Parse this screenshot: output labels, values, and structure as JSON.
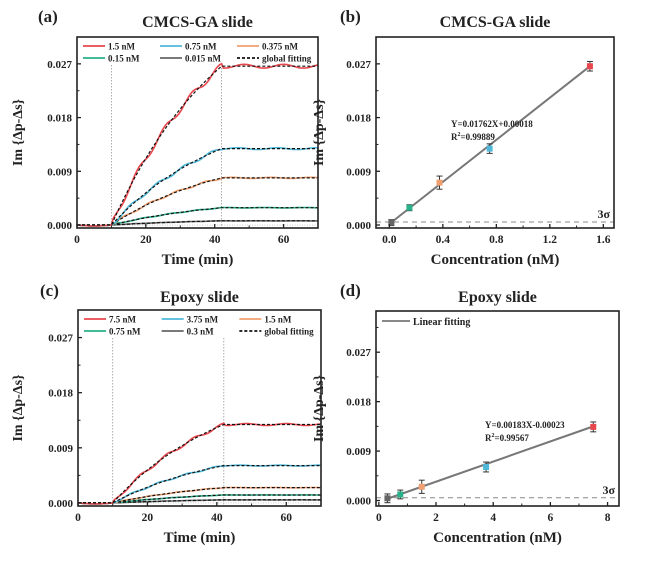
{
  "chart_data": [
    {
      "panel": "(a)",
      "type": "line",
      "title": "CMCS-GA slide",
      "xlabel": "Time (min)",
      "ylabel": "Im {Δp-Δs}",
      "xlim": [
        0,
        70
      ],
      "ylim": [
        -0.0005,
        0.0315
      ],
      "xticks": [
        0,
        20,
        40,
        60
      ],
      "xtick_labels": [
        "0",
        "20",
        "40",
        "60"
      ],
      "yticks": [
        0,
        0.009,
        0.018,
        0.027
      ],
      "ytick_labels": [
        "0.000",
        "0.009",
        "0.018",
        "0.027"
      ],
      "vlines": [
        10,
        42
      ],
      "association_start": 10,
      "dissociation_start": 42,
      "legend_position": "top",
      "series": [
        {
          "name": "1.5 nM",
          "color": "#e8474d",
          "plateau": 0.0266
        },
        {
          "name": "0.75 nM",
          "color": "#4fb8d8",
          "plateau": 0.0128
        },
        {
          "name": "0.375 nM",
          "color": "#f0a070",
          "plateau": 0.0079
        },
        {
          "name": "0.15 nM",
          "color": "#2ab08a",
          "plateau": 0.0029
        },
        {
          "name": "0.015 nM",
          "color": "#666666",
          "plateau": 0.0007
        }
      ],
      "fit_label": "global fitting"
    },
    {
      "panel": "(b)",
      "type": "scatter",
      "title": "CMCS-GA slide",
      "xlabel": "Concentration (nM)",
      "ylabel": "Im {Δp-Δs}",
      "xlim": [
        -0.1,
        1.68
      ],
      "ylim": [
        -0.0005,
        0.0315
      ],
      "xticks": [
        0,
        0.4,
        0.8,
        1.2,
        1.6
      ],
      "xtick_labels": [
        "0.0",
        "0.4",
        "0.8",
        "1.2",
        "1.6"
      ],
      "yticks": [
        0,
        0.009,
        0.018,
        0.027
      ],
      "ytick_labels": [
        "0.000",
        "0.009",
        "0.018",
        "0.027"
      ],
      "points": [
        {
          "x": 0.015,
          "y": 0.0004,
          "err": 0.0005,
          "color": "#666666"
        },
        {
          "x": 0.15,
          "y": 0.0029,
          "err": 0.0005,
          "color": "#2ab08a"
        },
        {
          "x": 0.375,
          "y": 0.0071,
          "err": 0.0011,
          "color": "#f0a070"
        },
        {
          "x": 0.75,
          "y": 0.0128,
          "err": 0.0008,
          "color": "#4fb8d8"
        },
        {
          "x": 1.5,
          "y": 0.0266,
          "err": 0.0008,
          "color": "#e8474d"
        }
      ],
      "fit": {
        "slope": 0.01762,
        "intercept": 0.00018,
        "x_range": [
          0.015,
          1.5
        ]
      },
      "equation": "Y=0.01762X+0.00018",
      "r2_prefix": "R",
      "r2_sup": "2",
      "r2_value": "=0.99889",
      "threshold": {
        "label": "3σ",
        "y": 0.0005
      }
    },
    {
      "panel": "(c)",
      "type": "line",
      "title": "Epoxy slide",
      "xlabel": "Time (min)",
      "ylabel": "Im {Δp-Δs}",
      "xlim": [
        0,
        70
      ],
      "ylim": [
        -0.0005,
        0.0315
      ],
      "xticks": [
        0,
        20,
        40,
        60
      ],
      "xtick_labels": [
        "0",
        "20",
        "40",
        "60"
      ],
      "yticks": [
        0,
        0.009,
        0.018,
        0.027
      ],
      "ytick_labels": [
        "0.000",
        "0.009",
        "0.018",
        "0.027"
      ],
      "vlines": [
        10,
        42
      ],
      "association_start": 10,
      "dissociation_start": 42,
      "legend_position": "top",
      "series": [
        {
          "name": "7.5 nM",
          "color": "#e8474d",
          "plateau": 0.0128
        },
        {
          "name": "3.75 nM",
          "color": "#4fb8d8",
          "plateau": 0.0061
        },
        {
          "name": "1.5 nM",
          "color": "#f0a070",
          "plateau": 0.0025
        },
        {
          "name": "0.75 nM",
          "color": "#2ab08a",
          "plateau": 0.0013
        },
        {
          "name": "0.3 nM",
          "color": "#666666",
          "plateau": 0.0005
        }
      ],
      "fit_label": "global fitting"
    },
    {
      "panel": "(d)",
      "type": "scatter",
      "title": "Epoxy slide",
      "xlabel": "Concentration (nM)",
      "ylabel": "Im {Δp-Δs}",
      "xlim": [
        -0.1,
        8.4
      ],
      "ylim": [
        -0.001,
        0.0345
      ],
      "xticks": [
        0,
        2,
        4,
        6,
        8
      ],
      "xtick_labels": [
        "0",
        "2",
        "4",
        "6",
        "8"
      ],
      "yticks": [
        0,
        0.009,
        0.018,
        0.027
      ],
      "ytick_labels": [
        "0.000",
        "0.009",
        "0.018",
        "0.027"
      ],
      "points": [
        {
          "x": 0.3,
          "y": 0.0004,
          "err": 0.0008,
          "color": "#666666"
        },
        {
          "x": 0.75,
          "y": 0.0011,
          "err": 0.0008,
          "color": "#2ab08a"
        },
        {
          "x": 1.5,
          "y": 0.0025,
          "err": 0.0012,
          "color": "#f0a070"
        },
        {
          "x": 3.75,
          "y": 0.0061,
          "err": 0.0009,
          "color": "#4fb8d8"
        },
        {
          "x": 7.5,
          "y": 0.0134,
          "err": 0.0009,
          "color": "#e8474d"
        }
      ],
      "fit": {
        "slope": 0.00183,
        "intercept": -0.00023,
        "x_range": [
          0.3,
          7.5
        ]
      },
      "equation": "Y=0.00183X-0.00023",
      "r2_prefix": "R",
      "r2_sup": "2",
      "r2_value": "=0.99567",
      "legend_label": "Linear fitting",
      "legend_position": "top-left",
      "threshold": {
        "label": "3σ",
        "y": 0.0005
      }
    }
  ]
}
